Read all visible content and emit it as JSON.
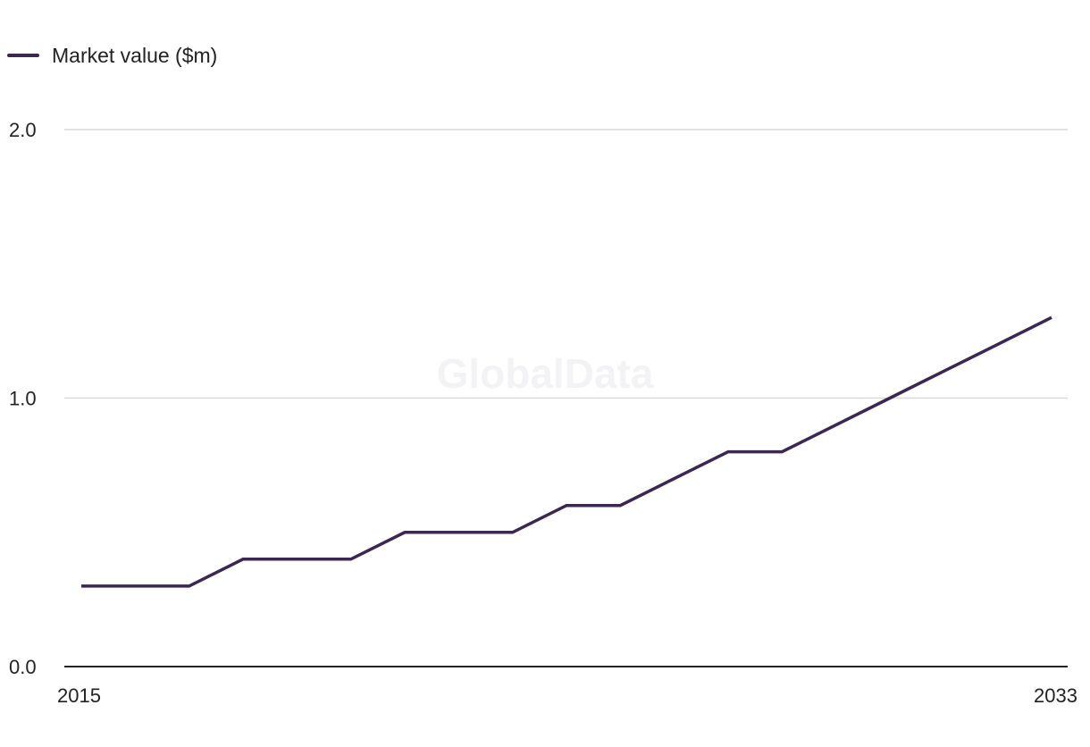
{
  "watermark": "GlobalData",
  "chart_data": {
    "type": "line",
    "title": "",
    "xlabel": "",
    "ylabel": "",
    "x": [
      2015,
      2016,
      2017,
      2018,
      2019,
      2020,
      2021,
      2022,
      2023,
      2024,
      2025,
      2026,
      2027,
      2028,
      2029,
      2030,
      2031,
      2032,
      2033
    ],
    "series": [
      {
        "name": "Market value ($m)",
        "color": "#3a2752",
        "values": [
          0.3,
          0.3,
          0.3,
          0.4,
          0.4,
          0.4,
          0.5,
          0.5,
          0.5,
          0.6,
          0.6,
          0.7,
          0.8,
          0.8,
          0.9,
          1.0,
          1.1,
          1.2,
          1.3
        ]
      }
    ],
    "xlim": [
      2015,
      2033
    ],
    "ylim": [
      0,
      2
    ],
    "yticks": [
      "0.0",
      "1.0",
      "2.0"
    ],
    "xticks": [
      "2015",
      "2033"
    ],
    "grid": true,
    "legend_position": "top-left",
    "gridline_color": "#d9d9d9",
    "axis_color": "#222222"
  }
}
